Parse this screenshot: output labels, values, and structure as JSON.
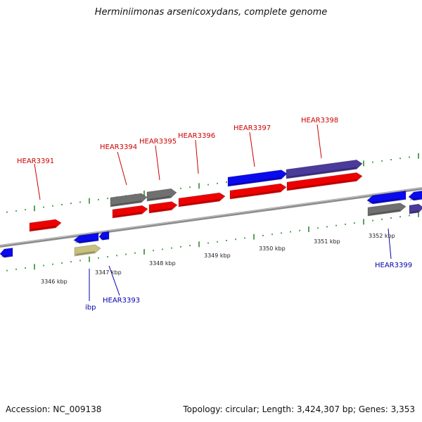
{
  "title": "Herminiimonas arsenicoxydans, complete genome",
  "footer": {
    "accession": "Accession: NC_009138",
    "summary": "Topology: circular; Length: 3,424,307 bp; Genes: 3,353"
  },
  "colors": {
    "backbone": "#8c8c8c",
    "tick": "#2e8b2e",
    "label_top": "#cc0000",
    "label_bottom": "#0000aa",
    "red": "#ee0000",
    "blue": "#0a0aee",
    "gray": "#707070",
    "purple": "#4a3a9a",
    "khaki": "#c8c080",
    "ruler_text": "#222222"
  },
  "ruler": [
    "3346 kbp",
    "3347 kbp",
    "3348 kbp",
    "3349 kbp",
    "3350 kbp",
    "3351 kbp",
    "3352 kbp"
  ],
  "labels_top": [
    "HEAR3391",
    "HEAR3394",
    "HEAR3395",
    "HEAR3396",
    "HEAR3397",
    "HEAR3398"
  ],
  "labels_bottom": [
    "ibp",
    "HEAR3393",
    "HEAR3399"
  ],
  "features": [
    {
      "color": "red",
      "dir": "+"
    },
    {
      "color": "blue",
      "dir": "-"
    },
    {
      "color": "blue",
      "dir": "-"
    },
    {
      "color": "blue",
      "dir": "-"
    },
    {
      "color": "khaki",
      "dir": "+"
    },
    {
      "color": "gray",
      "dir": "+"
    },
    {
      "color": "red",
      "dir": "+"
    },
    {
      "color": "gray",
      "dir": "+"
    },
    {
      "color": "red",
      "dir": "+"
    },
    {
      "color": "red",
      "dir": "+"
    },
    {
      "color": "blue",
      "dir": "+"
    },
    {
      "color": "red",
      "dir": "+"
    },
    {
      "color": "purple",
      "dir": "+"
    },
    {
      "color": "red",
      "dir": "+"
    },
    {
      "color": "blue",
      "dir": "-"
    },
    {
      "color": "gray",
      "dir": "+"
    },
    {
      "color": "blue",
      "dir": "-"
    },
    {
      "color": "purple",
      "dir": "+"
    }
  ]
}
